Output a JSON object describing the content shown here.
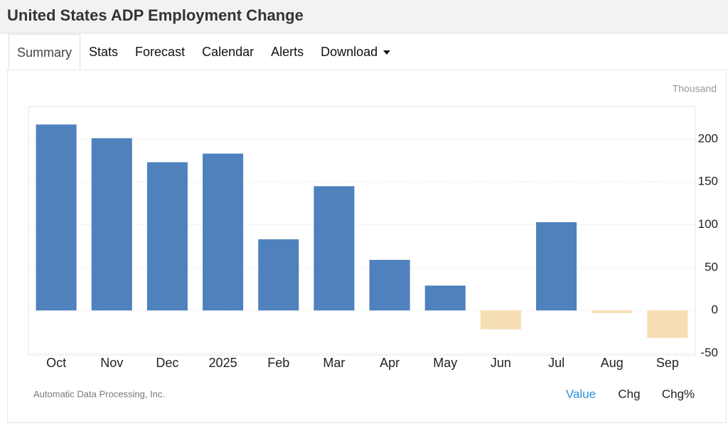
{
  "header": {
    "title": "United States ADP Employment Change"
  },
  "tabs": [
    "Summary",
    "Stats",
    "Forecast",
    "Calendar",
    "Alerts",
    "Download"
  ],
  "chart_data": {
    "type": "bar",
    "unit_label": "Thousand",
    "source": "Automatic Data Processing, Inc.",
    "view_buttons": [
      "Value",
      "Chg",
      "Chg%"
    ],
    "categories": [
      "Oct",
      "Nov",
      "Dec",
      "2025",
      "Feb",
      "Mar",
      "Apr",
      "May",
      "Jun",
      "Jul",
      "Aug",
      "Sep"
    ],
    "values": [
      217,
      201,
      173,
      183,
      83,
      145,
      59,
      29,
      -22,
      103,
      -3,
      -32
    ],
    "color": "#4f81bd",
    "negative_color": "#f6deb4",
    "ylim": [
      -52,
      238
    ],
    "yticks": [
      -50,
      0,
      50,
      100,
      150,
      200
    ],
    "grid": true
  }
}
